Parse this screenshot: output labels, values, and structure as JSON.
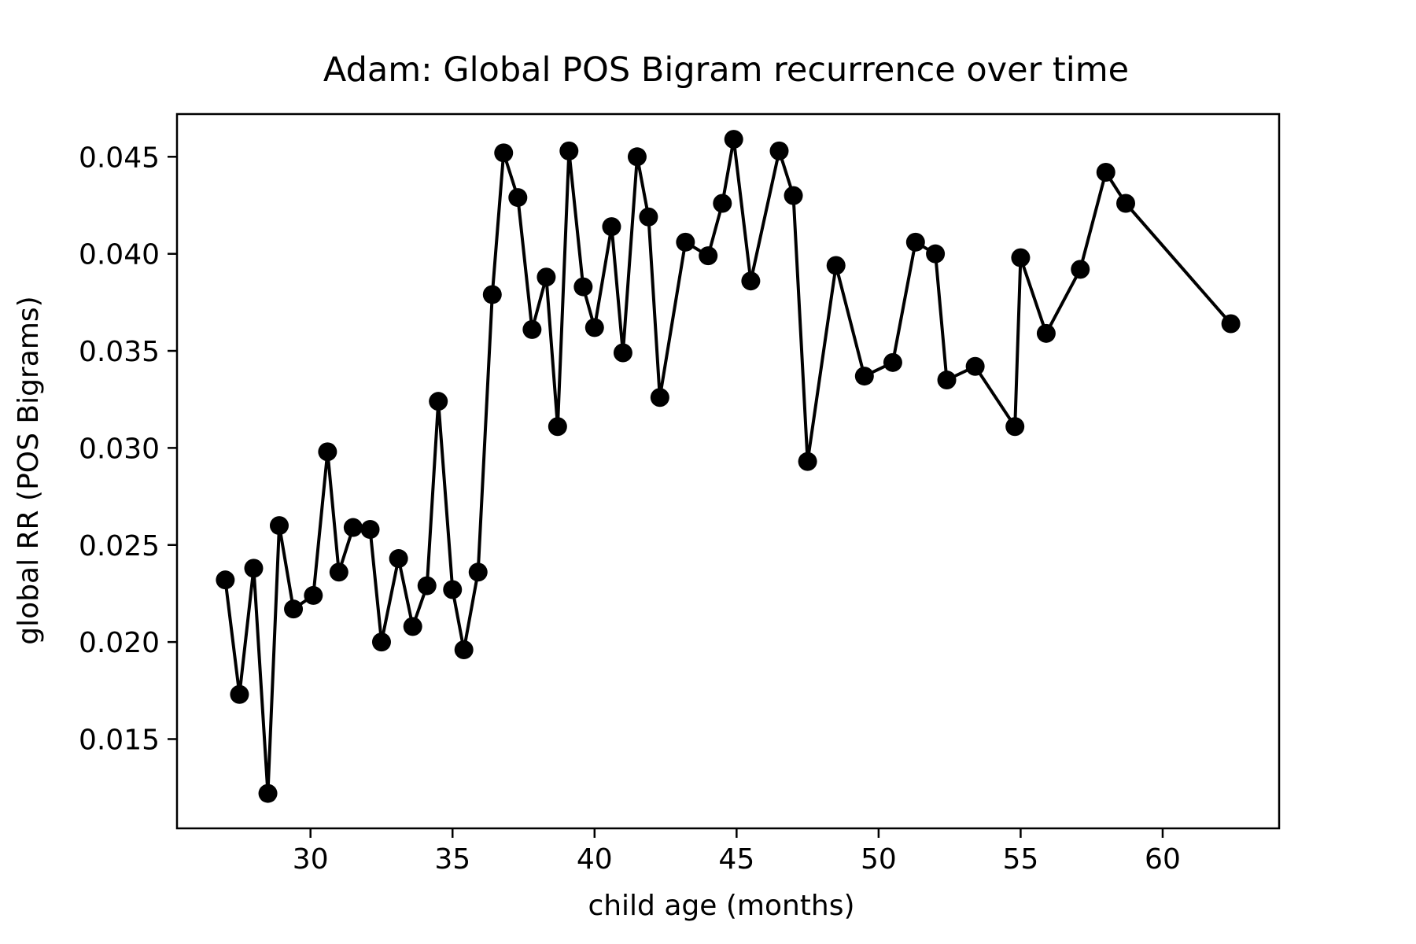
{
  "chart_data": {
    "type": "line",
    "title": "Adam: Global POS Bigram recurrence over time",
    "xlabel": "child age (months)",
    "ylabel": "global RR (POS Bigrams)",
    "xlim": [
      25.3,
      64.1
    ],
    "ylim": [
      0.0104,
      0.0472
    ],
    "xticks": [
      30,
      35,
      40,
      45,
      50,
      55,
      60
    ],
    "xtick_labels": [
      "30",
      "35",
      "40",
      "45",
      "50",
      "55",
      "60"
    ],
    "yticks": [
      0.015,
      0.02,
      0.025,
      0.03,
      0.035,
      0.04,
      0.045
    ],
    "ytick_labels": [
      "0.015",
      "0.020",
      "0.025",
      "0.030",
      "0.035",
      "0.040",
      "0.045"
    ],
    "grid": false,
    "legend": false,
    "colors": {
      "line": "#000000",
      "marker": "#000000",
      "frame": "#000000"
    },
    "series": [
      {
        "marker": "circle",
        "x": [
          27.0,
          27.5,
          28.0,
          28.5,
          28.9,
          29.4,
          30.1,
          30.6,
          31.0,
          31.5,
          32.1,
          32.5,
          33.1,
          33.6,
          34.1,
          34.5,
          35.0,
          35.4,
          35.9,
          36.4,
          36.8,
          37.3,
          37.8,
          38.3,
          38.7,
          39.1,
          39.6,
          40.0,
          40.6,
          41.0,
          41.5,
          41.9,
          42.3,
          43.2,
          44.0,
          44.5,
          44.9,
          45.5,
          46.5,
          47.0,
          47.5,
          48.5,
          49.5,
          50.5,
          51.3,
          52.0,
          52.4,
          53.4,
          54.8,
          55.0,
          55.9,
          57.1,
          58.0,
          58.7,
          62.4
        ],
        "y": [
          0.0232,
          0.0173,
          0.0238,
          0.0122,
          0.026,
          0.0217,
          0.0224,
          0.0298,
          0.0236,
          0.0259,
          0.0258,
          0.02,
          0.0243,
          0.0208,
          0.0229,
          0.0324,
          0.0227,
          0.0196,
          0.0236,
          0.0379,
          0.0452,
          0.0429,
          0.0361,
          0.0388,
          0.0311,
          0.0453,
          0.0383,
          0.0362,
          0.0414,
          0.0349,
          0.045,
          0.0419,
          0.0326,
          0.0406,
          0.0399,
          0.0426,
          0.0459,
          0.0386,
          0.0453,
          0.043,
          0.0293,
          0.0394,
          0.0337,
          0.0344,
          0.0406,
          0.04,
          0.0335,
          0.0342,
          0.0311,
          0.0398,
          0.0359,
          0.0392,
          0.0442,
          0.0426,
          0.0364
        ]
      }
    ]
  }
}
